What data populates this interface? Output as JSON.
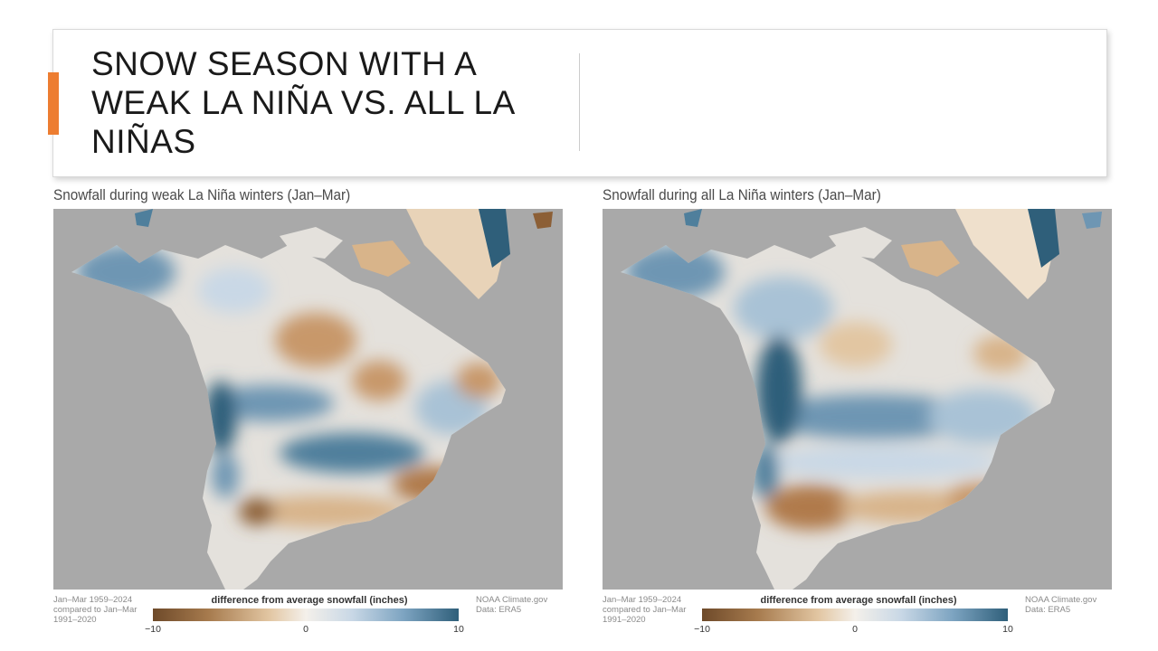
{
  "slide": {
    "title": "SNOW SEASON WITH A WEAK LA NIÑA VS. ALL LA NIÑAS",
    "accent_color": "#ed7d31"
  },
  "panels": [
    {
      "title": "Snowfall during weak La Niña winters (Jan–Mar)",
      "footnote": "Jan–Mar 1959–2024 compared to Jan–Mar 1991–2020",
      "legend_title": "difference from average snowfall (inches)",
      "tick_min": "−10",
      "tick_mid": "0",
      "tick_max": "10",
      "credit": "NOAA Climate.gov Data: ERA5"
    },
    {
      "title": "Snowfall during all La Niña winters (Jan–Mar)",
      "footnote": "Jan–Mar 1959–2024 compared to Jan–Mar 1991–2020",
      "legend_title": "difference from average snowfall (inches)",
      "tick_min": "−10",
      "tick_mid": "0",
      "tick_max": "10",
      "credit": "NOAA Climate.gov Data: ERA5"
    }
  ],
  "colors": {
    "ocean": "#a9a9a9",
    "land_neutral": "#e4e1dc",
    "deficit": "#b9875a",
    "surplus": "#4f7f9c",
    "strong_surplus": "#2f5f7a"
  }
}
